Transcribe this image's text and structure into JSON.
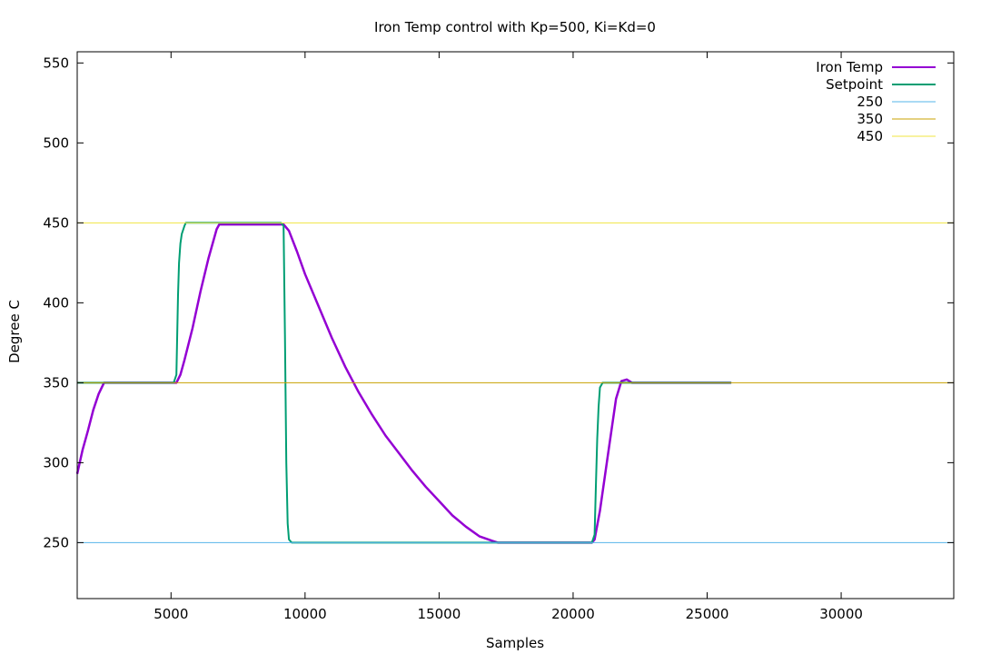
{
  "chart_data": {
    "type": "line",
    "title": "Iron Temp control with Kp=500, Ki=Kd=0",
    "xlabel": "Samples",
    "ylabel": "Degree C",
    "xlim": [
      1500,
      34200
    ],
    "ylim": [
      215,
      557
    ],
    "xticks": [
      5000,
      10000,
      15000,
      20000,
      25000,
      30000
    ],
    "xtick_labels": [
      "5000",
      "10000",
      "15000",
      "20000",
      "25000",
      "30000"
    ],
    "yticks": [
      250,
      300,
      350,
      400,
      450,
      500,
      550
    ],
    "ytick_labels": [
      "250",
      "300",
      "350",
      "400",
      "450",
      "500",
      "550"
    ],
    "grid": false,
    "legend_position": "top-right",
    "series": [
      {
        "name": "Iron Temp",
        "color": "#9400d3",
        "x": [
          1500,
          1700,
          1900,
          2100,
          2300,
          2500,
          2700,
          3000,
          4000,
          5000,
          5200,
          5350,
          5500,
          5800,
          6100,
          6400,
          6700,
          6800,
          7500,
          8500,
          9200,
          9400,
          9700,
          10000,
          10500,
          11000,
          11500,
          12000,
          12500,
          13000,
          13500,
          14000,
          14500,
          15000,
          15500,
          16000,
          16500,
          17000,
          17200,
          18000,
          19000,
          20000,
          20700,
          20800,
          21000,
          21300,
          21600,
          21800,
          22000,
          22200,
          23000,
          24000,
          25000,
          25900
        ],
        "y": [
          293,
          308,
          320,
          333,
          343,
          350,
          350,
          350,
          350,
          350,
          350,
          355,
          364,
          384,
          407,
          428,
          446,
          449,
          449,
          449,
          449,
          445,
          432,
          418,
          398,
          378,
          360,
          344,
          330,
          317,
          306,
          295,
          285,
          276,
          267,
          260,
          254,
          251,
          250,
          250,
          250,
          250,
          250,
          252,
          270,
          305,
          340,
          351,
          352,
          350,
          350,
          350,
          350,
          350
        ]
      },
      {
        "name": "Setpoint",
        "color": "#009e73",
        "x": [
          1500,
          5100,
          5200,
          5230,
          5260,
          5300,
          5350,
          5400,
          5500,
          5550,
          5600,
          9100,
          9200,
          9250,
          9300,
          9350,
          9400,
          9500,
          20700,
          20800,
          20850,
          20900,
          20950,
          21000,
          21100,
          21300,
          25900
        ],
        "y": [
          350,
          350,
          355,
          380,
          405,
          425,
          437,
          443,
          448,
          450,
          450,
          450,
          448,
          380,
          300,
          262,
          252,
          250,
          250,
          255,
          285,
          315,
          335,
          347,
          350,
          350,
          350
        ]
      },
      {
        "name": "250",
        "color": "#56b4e9",
        "constant": 250
      },
      {
        "name": "350",
        "color": "#c8a000",
        "constant": 350
      },
      {
        "name": "450",
        "color": "#f0e442",
        "constant": 450
      }
    ]
  }
}
